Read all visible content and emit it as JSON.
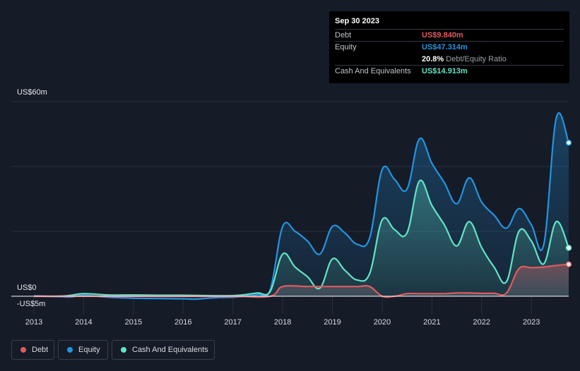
{
  "tooltip": {
    "date": "Sep 30 2023",
    "debt_label": "Debt",
    "debt_value": "US$9.840m",
    "equity_label": "Equity",
    "equity_value": "US$47.314m",
    "ratio_value": "20.8%",
    "ratio_label": "Debt/Equity Ratio",
    "cash_label": "Cash And Equivalents",
    "cash_value": "US$14.913m"
  },
  "colors": {
    "debt": "#e05a5f",
    "equity": "#2394df",
    "cash": "#62e3c5",
    "ratio_text": "#ffffff"
  },
  "legend": {
    "debt": "Debt",
    "equity": "Equity",
    "cash": "Cash And Equivalents"
  },
  "chart_data": {
    "type": "area",
    "title": "",
    "y_top_label": "US$60m",
    "y_zero_label": "US$0",
    "y_bottom_label": "-US$5m",
    "ylim": [
      -5,
      60
    ],
    "xlim": [
      2013.0,
      2023.75
    ],
    "x_ticks": [
      2013,
      2014,
      2015,
      2016,
      2017,
      2018,
      2019,
      2020,
      2021,
      2022,
      2023
    ],
    "x_tick_labels": [
      "2013",
      "2014",
      "2015",
      "2016",
      "2017",
      "2018",
      "2019",
      "2020",
      "2021",
      "2022",
      "2023"
    ],
    "gridlines": [
      0,
      20,
      40,
      60
    ],
    "series": [
      {
        "name": "Equity",
        "points": [
          [
            2013.0,
            0.1
          ],
          [
            2013.5,
            -0.1
          ],
          [
            2013.75,
            -0.2
          ],
          [
            2014.0,
            0.3
          ],
          [
            2014.5,
            -0.3
          ],
          [
            2015.0,
            -0.6
          ],
          [
            2015.5,
            -0.7
          ],
          [
            2016.0,
            -0.8
          ],
          [
            2016.25,
            -0.9
          ],
          [
            2016.5,
            -0.6
          ],
          [
            2016.75,
            -0.4
          ],
          [
            2017.0,
            -0.3
          ],
          [
            2017.25,
            0.0
          ],
          [
            2017.5,
            0.5
          ],
          [
            2017.75,
            2.0
          ],
          [
            2018.0,
            21.5
          ],
          [
            2018.25,
            20.0
          ],
          [
            2018.5,
            17.0
          ],
          [
            2018.75,
            13.0
          ],
          [
            2019.0,
            21.5
          ],
          [
            2019.25,
            19.5
          ],
          [
            2019.5,
            16.0
          ],
          [
            2019.75,
            18.0
          ],
          [
            2020.0,
            39.0
          ],
          [
            2020.25,
            36.0
          ],
          [
            2020.5,
            33.0
          ],
          [
            2020.75,
            48.5
          ],
          [
            2021.0,
            41.0
          ],
          [
            2021.25,
            35.0
          ],
          [
            2021.5,
            28.5
          ],
          [
            2021.75,
            36.5
          ],
          [
            2022.0,
            29.0
          ],
          [
            2022.25,
            25.0
          ],
          [
            2022.5,
            21.0
          ],
          [
            2022.75,
            27.0
          ],
          [
            2023.0,
            22.0
          ],
          [
            2023.25,
            16.0
          ],
          [
            2023.5,
            55.0
          ],
          [
            2023.75,
            47.314
          ]
        ]
      },
      {
        "name": "Cash And Equivalents",
        "points": [
          [
            2013.0,
            0.0
          ],
          [
            2013.5,
            0.0
          ],
          [
            2013.75,
            0.3
          ],
          [
            2014.0,
            0.8
          ],
          [
            2014.5,
            0.4
          ],
          [
            2015.0,
            0.4
          ],
          [
            2015.5,
            0.3
          ],
          [
            2016.0,
            0.3
          ],
          [
            2016.5,
            0.2
          ],
          [
            2017.0,
            0.2
          ],
          [
            2017.25,
            0.5
          ],
          [
            2017.5,
            1.0
          ],
          [
            2017.75,
            1.5
          ],
          [
            2018.0,
            13.0
          ],
          [
            2018.25,
            9.0
          ],
          [
            2018.5,
            6.0
          ],
          [
            2018.75,
            2.5
          ],
          [
            2019.0,
            11.5
          ],
          [
            2019.25,
            8.0
          ],
          [
            2019.5,
            5.0
          ],
          [
            2019.75,
            7.0
          ],
          [
            2020.0,
            23.5
          ],
          [
            2020.25,
            20.5
          ],
          [
            2020.5,
            19.5
          ],
          [
            2020.75,
            35.5
          ],
          [
            2021.0,
            28.0
          ],
          [
            2021.25,
            22.0
          ],
          [
            2021.5,
            15.5
          ],
          [
            2021.75,
            23.0
          ],
          [
            2022.0,
            15.0
          ],
          [
            2022.25,
            9.0
          ],
          [
            2022.5,
            4.5
          ],
          [
            2022.75,
            20.0
          ],
          [
            2023.0,
            17.0
          ],
          [
            2023.25,
            10.0
          ],
          [
            2023.5,
            23.0
          ],
          [
            2023.75,
            14.913
          ]
        ]
      },
      {
        "name": "Debt",
        "points": [
          [
            2013.0,
            0.0
          ],
          [
            2014.0,
            0.0
          ],
          [
            2015.0,
            0.0
          ],
          [
            2016.0,
            0.0
          ],
          [
            2017.0,
            0.0
          ],
          [
            2017.75,
            0.0
          ],
          [
            2018.0,
            3.0
          ],
          [
            2018.5,
            3.0
          ],
          [
            2019.0,
            3.0
          ],
          [
            2019.5,
            3.0
          ],
          [
            2019.75,
            3.0
          ],
          [
            2020.0,
            0.0
          ],
          [
            2020.25,
            0.0
          ],
          [
            2020.5,
            0.8
          ],
          [
            2020.75,
            0.8
          ],
          [
            2021.0,
            0.8
          ],
          [
            2021.25,
            0.8
          ],
          [
            2021.5,
            1.0
          ],
          [
            2021.75,
            1.0
          ],
          [
            2022.0,
            0.9
          ],
          [
            2022.25,
            0.9
          ],
          [
            2022.5,
            1.0
          ],
          [
            2022.75,
            8.5
          ],
          [
            2023.0,
            8.8
          ],
          [
            2023.25,
            9.0
          ],
          [
            2023.5,
            9.5
          ],
          [
            2023.75,
            9.84
          ]
        ]
      }
    ]
  }
}
